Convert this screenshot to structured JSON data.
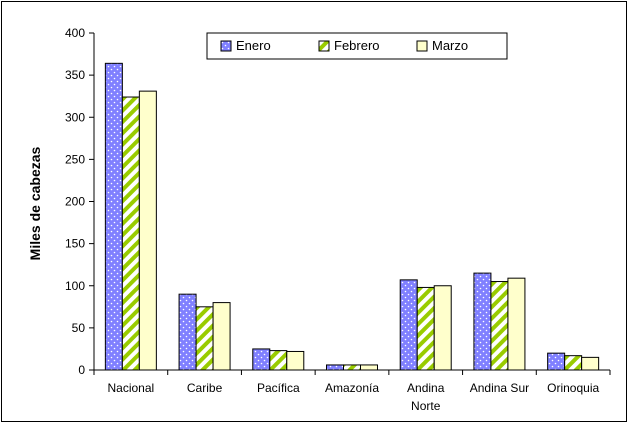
{
  "chart_data": {
    "type": "bar",
    "categories": [
      [
        "Nacional"
      ],
      [
        "Caribe"
      ],
      [
        "Pacífica"
      ],
      [
        "Amazonía"
      ],
      [
        "Andina",
        "Norte"
      ],
      [
        "Andina Sur"
      ],
      [
        "Orinoquia"
      ]
    ],
    "series": [
      {
        "name": "Enero",
        "values": [
          364,
          90,
          25,
          6,
          107,
          115,
          20
        ],
        "color": "#8080ff",
        "pattern": "dots"
      },
      {
        "name": "Febrero",
        "values": [
          324,
          75,
          23,
          6,
          98,
          105,
          17
        ],
        "color": "#99cc00",
        "pattern": "diagonal-stripes"
      },
      {
        "name": "Marzo",
        "values": [
          331,
          80,
          22,
          6,
          100,
          109,
          15
        ],
        "color": "#ffffcc",
        "pattern": "solid"
      }
    ],
    "ylabel": "Miles de cabezas",
    "xlabel": "",
    "ylim": [
      0,
      400
    ],
    "yticks": [
      "0",
      "50",
      "100",
      "150",
      "200",
      "250",
      "300",
      "350",
      "400"
    ],
    "grid": false,
    "legend_position": "top"
  }
}
